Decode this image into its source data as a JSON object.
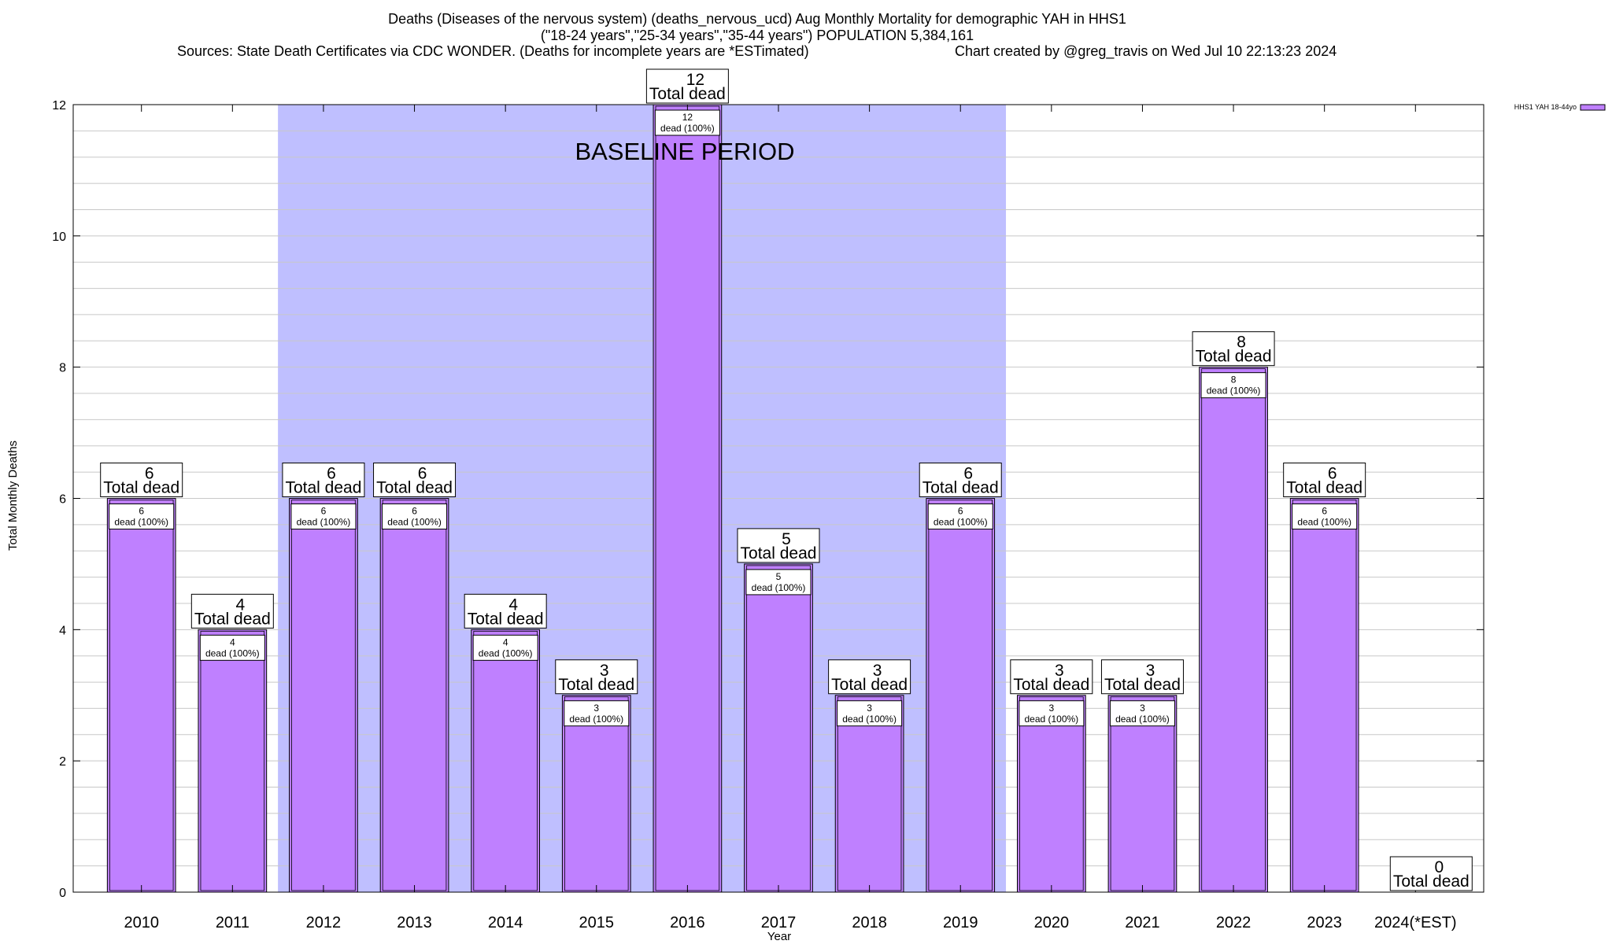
{
  "chart_data": {
    "type": "bar",
    "title_lines": [
      "Deaths (Diseases of the nervous system) (deaths_nervous_ucd) Aug Monthly Mortality for demographic YAH in HHS1",
      "(\"18-24 years\",\"25-34 years\",\"35-44 years\") POPULATION 5,384,161"
    ],
    "sources": "Sources: State Death Certificates via CDC WONDER. (Deaths for incomplete years are *ESTimated)",
    "credit": "Chart created by @greg_travis on Wed Jul 10 22:13:23 2024",
    "xlabel": "Year",
    "ylabel": "Total Monthly Deaths",
    "ylim": [
      0,
      12
    ],
    "y_ticks": [
      0,
      2,
      4,
      6,
      8,
      10,
      12
    ],
    "grid": true,
    "legend": {
      "position": "top-right",
      "label": "HHS1 YAH 18-44yo"
    },
    "baseline": {
      "label": "BASELINE PERIOD",
      "from": "2012",
      "to": "2019"
    },
    "categories": [
      "2010",
      "2011",
      "2012",
      "2013",
      "2014",
      "2015",
      "2016",
      "2017",
      "2018",
      "2019",
      "2020",
      "2021",
      "2022",
      "2023",
      "2024(*EST)"
    ],
    "series": [
      {
        "name": "HHS1 YAH 18-44yo",
        "values": [
          6,
          4,
          6,
          6,
          4,
          3,
          12,
          5,
          3,
          6,
          3,
          3,
          8,
          6,
          0
        ]
      }
    ],
    "total_label_suffix": "Total dead",
    "inner_label_suffix": "dead (100%)",
    "colors": {
      "bar": "#bf80ff",
      "baseline": "#bfbfff",
      "grid": "#c8c8c8"
    }
  }
}
